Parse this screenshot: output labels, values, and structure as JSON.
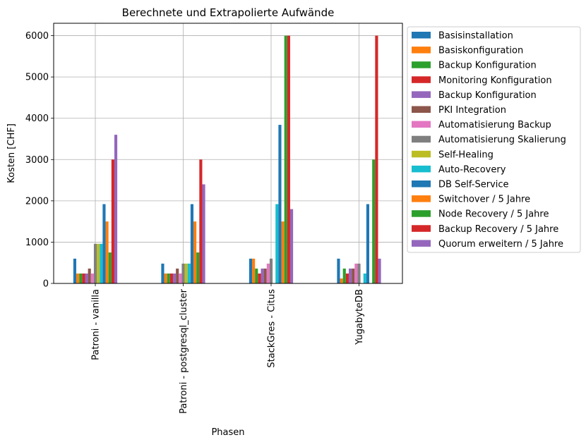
{
  "chart_data": {
    "type": "bar",
    "title": "Berechnete und Extrapolierte Aufwände",
    "xlabel": "Phasen",
    "ylabel": "Kosten [CHF]",
    "ylim": [
      0,
      6300
    ],
    "yticks": [
      0,
      1000,
      2000,
      3000,
      4000,
      5000,
      6000
    ],
    "grid": true,
    "legend_position": "outside-right",
    "categories": [
      "Patroni - vanilla",
      "Patroni - postgresql_cluster",
      "StackGres - Citus",
      "YugabyteDB"
    ],
    "series": [
      {
        "name": "Basisinstallation",
        "color": "#1f77b4",
        "values": [
          600,
          480,
          600,
          600
        ]
      },
      {
        "name": "Basiskonfiguration",
        "color": "#ff7f0e",
        "values": [
          240,
          240,
          600,
          120
        ]
      },
      {
        "name": "Backup Konfiguration",
        "color": "#2ca02c",
        "values": [
          240,
          240,
          360,
          360
        ]
      },
      {
        "name": "Monitoring Konfiguration",
        "color": "#d62728",
        "values": [
          240,
          240,
          240,
          240
        ]
      },
      {
        "name": "Backup Konfiguration",
        "color": "#9467bd",
        "values": [
          240,
          240,
          360,
          360
        ]
      },
      {
        "name": "PKI Integration",
        "color": "#8c564b",
        "values": [
          360,
          360,
          360,
          360
        ]
      },
      {
        "name": "Automatisierung Backup",
        "color": "#e377c2",
        "values": [
          240,
          240,
          480,
          480
        ]
      },
      {
        "name": "Automatisierung Skalierung",
        "color": "#7f7f7f",
        "values": [
          960,
          480,
          600,
          480
        ]
      },
      {
        "name": "Self-Healing",
        "color": "#bcbd22",
        "values": [
          960,
          480,
          0,
          0
        ]
      },
      {
        "name": "Auto-Recovery",
        "color": "#17becf",
        "values": [
          960,
          480,
          1920,
          240
        ]
      },
      {
        "name": "DB Self-Service",
        "color": "#1f77b4",
        "values": [
          1920,
          1920,
          3840,
          1920
        ]
      },
      {
        "name": "Switchover / 5 Jahre",
        "color": "#ff7f0e",
        "values": [
          1500,
          1500,
          1500,
          0
        ]
      },
      {
        "name": "Node Recovery / 5 Jahre",
        "color": "#2ca02c",
        "values": [
          750,
          750,
          6000,
          3000
        ]
      },
      {
        "name": "Backup Recovery / 5 Jahre",
        "color": "#d62728",
        "values": [
          3000,
          3000,
          6000,
          6000
        ]
      },
      {
        "name": "Quorum erweitern / 5 Jahre",
        "color": "#9467bd",
        "values": [
          3600,
          2400,
          1800,
          600
        ]
      }
    ]
  }
}
